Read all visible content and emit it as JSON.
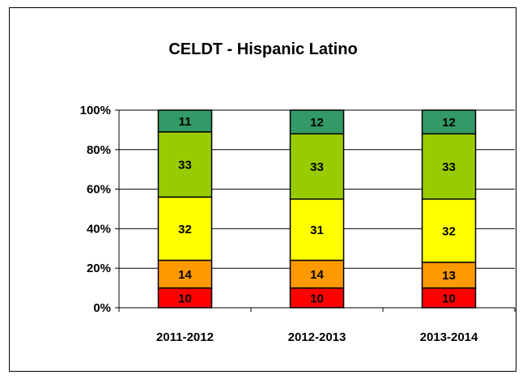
{
  "chart_data": {
    "type": "bar",
    "stacked": "percent",
    "title": "CELDT - Hispanic Latino",
    "xlabel": "",
    "ylabel": "",
    "categories": [
      "2011-2012",
      "2012-2013",
      "2013-2014"
    ],
    "ylim": [
      0,
      100
    ],
    "yticks": [
      "0%",
      "20%",
      "40%",
      "60%",
      "80%",
      "100%"
    ],
    "grid": true,
    "legend": "none",
    "series": [
      {
        "values": [
          10,
          10,
          10
        ],
        "color": "#ff0000"
      },
      {
        "values": [
          14,
          14,
          13
        ],
        "color": "#ff9900"
      },
      {
        "values": [
          32,
          31,
          32
        ],
        "color": "#ffff00"
      },
      {
        "values": [
          33,
          33,
          33
        ],
        "color": "#99cc00"
      },
      {
        "values": [
          11,
          12,
          12
        ],
        "color": "#339966"
      }
    ]
  }
}
